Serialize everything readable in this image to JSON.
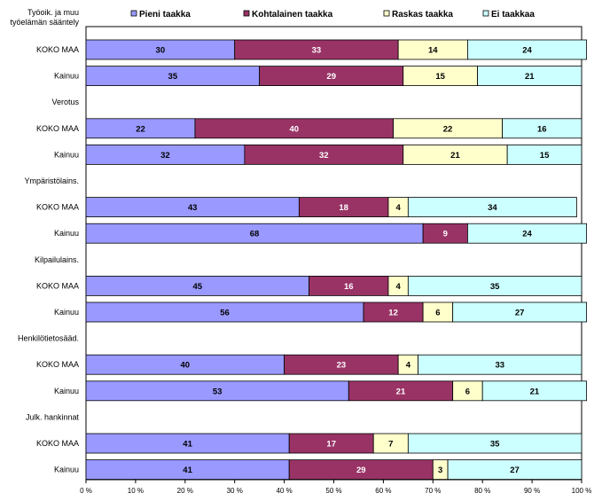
{
  "chart_data": {
    "type": "bar",
    "orientation": "horizontal",
    "stacked": "percent",
    "title": "",
    "xlabel": "",
    "ylabel": "",
    "xlim": [
      0,
      100
    ],
    "x_ticks": [
      "0 %",
      "10 %",
      "20 %",
      "30 %",
      "40 %",
      "50 %",
      "60 %",
      "70 %",
      "80 %",
      "90 %",
      "100 %"
    ],
    "legend_position": "top",
    "groups": [
      {
        "label": "Työoik. ja muu työelämän sääntely",
        "label_lines": [
          "Työoik. ja muu",
          "työelämän sääntely"
        ]
      },
      {
        "label": "Verotus",
        "label_lines": [
          "Verotus"
        ]
      },
      {
        "label": "Ympäristölains.",
        "label_lines": [
          "Ympäristölains."
        ]
      },
      {
        "label": "Kilpailulains.",
        "label_lines": [
          "Kilpailulains."
        ]
      },
      {
        "label": "Henkilötietosääd.",
        "label_lines": [
          "Henkilötietosääd."
        ]
      },
      {
        "label": "Julk. hankinnat",
        "label_lines": [
          "Julk. hankinnat"
        ]
      }
    ],
    "row_labels": [
      "KOKO MAA",
      "Kainuu"
    ],
    "series": [
      {
        "name": "Pieni taakka",
        "color": "#9999FF",
        "label_color": "#000000",
        "values": [
          [
            30,
            35
          ],
          [
            22,
            32
          ],
          [
            43,
            68
          ],
          [
            45,
            56
          ],
          [
            40,
            53
          ],
          [
            41,
            41
          ]
        ]
      },
      {
        "name": "Kohtalainen taakka",
        "color": "#993366",
        "label_color": "#FFFFFF",
        "values": [
          [
            33,
            29
          ],
          [
            40,
            32
          ],
          [
            18,
            9
          ],
          [
            16,
            12
          ],
          [
            23,
            21
          ],
          [
            17,
            29
          ]
        ]
      },
      {
        "name": "Raskas taakka",
        "color": "#FFFFCC",
        "label_color": "#000000",
        "values": [
          [
            14,
            15
          ],
          [
            22,
            21
          ],
          [
            4,
            0
          ],
          [
            4,
            6
          ],
          [
            4,
            6
          ],
          [
            7,
            3
          ]
        ]
      },
      {
        "name": "Ei taakkaa",
        "color": "#CCFFFF",
        "label_color": "#000000",
        "values": [
          [
            24,
            21
          ],
          [
            16,
            15
          ],
          [
            34,
            24
          ],
          [
            35,
            27
          ],
          [
            33,
            21
          ],
          [
            35,
            27
          ]
        ]
      }
    ]
  }
}
